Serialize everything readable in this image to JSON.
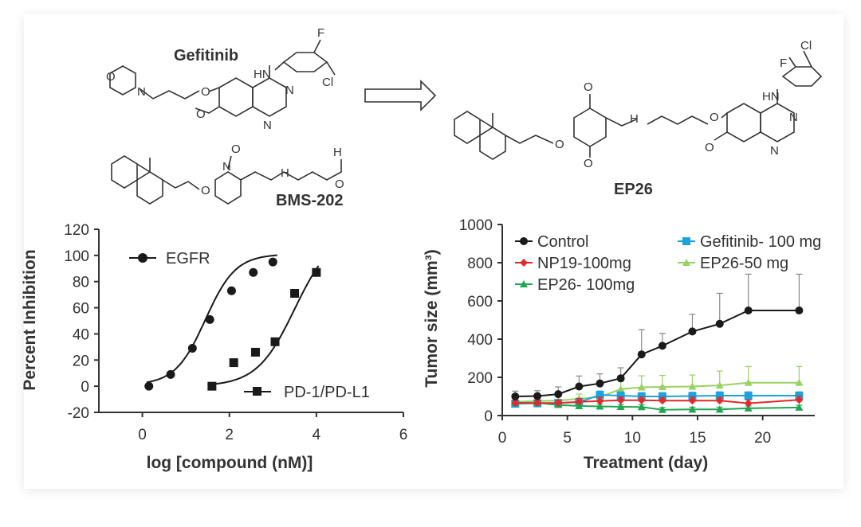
{
  "scheme": {
    "compound_a": "Gefitinib",
    "compound_b": "BMS-202",
    "product": "EP26",
    "atoms": {
      "n": "N",
      "o": "O",
      "nh": "HN",
      "h": "H",
      "f": "F",
      "cl": "Cl"
    }
  },
  "chart_data": [
    {
      "type": "scatter",
      "xlabel": "log [compound (nM)]",
      "ylabel": "Percent Inhibition",
      "xlim": [
        -1,
        6
      ],
      "ylim": [
        -20,
        120
      ],
      "xticks": [
        0,
        2,
        4,
        6
      ],
      "yticks": [
        -20,
        0,
        20,
        40,
        60,
        80,
        100,
        120
      ],
      "series": [
        {
          "name": "EGFR",
          "marker": "circle",
          "x": [
            0.15,
            0.65,
            1.15,
            1.55,
            2.05,
            2.55,
            3.0
          ],
          "y": [
            0,
            9,
            29,
            51,
            73,
            87,
            95
          ],
          "fit": {
            "bottom": 1,
            "top": 101,
            "ec50": 1.45,
            "hill": 1.25,
            "xrange": [
              0.1,
              3.1
            ]
          }
        },
        {
          "name": "PD-1/PD-L1",
          "marker": "square",
          "x": [
            1.6,
            2.1,
            2.6,
            3.05,
            3.5,
            4.0
          ],
          "y": [
            0,
            18,
            26,
            34,
            71,
            87
          ],
          "fit": {
            "bottom": 0,
            "top": 118,
            "ec50": 3.5,
            "hill": 1.0,
            "xrange": [
              1.5,
              4.05
            ]
          }
        }
      ]
    },
    {
      "type": "line",
      "xlabel": "Treatment (day)",
      "ylabel": "Tumor size (mm³)",
      "xlim": [
        0,
        24
      ],
      "ylim": [
        0,
        1000
      ],
      "xticks": [
        0,
        5,
        10,
        15,
        20
      ],
      "yticks": [
        0,
        200,
        400,
        600,
        800,
        1000
      ],
      "series": [
        {
          "name": "Control",
          "color": "#1a1a1a",
          "marker": "circle",
          "x": [
            1,
            2.7,
            4.3,
            5.9,
            7.5,
            9.1,
            10.7,
            12.3,
            14.6,
            16.7,
            18.9,
            22.8
          ],
          "y": [
            100,
            102,
            112,
            152,
            168,
            195,
            320,
            365,
            440,
            480,
            550,
            550
          ],
          "err": [
            28,
            28,
            38,
            55,
            50,
            55,
            130,
            65,
            90,
            160,
            190,
            190
          ]
        },
        {
          "name": "NP19-100mg",
          "color": "#e32a2a",
          "marker": "diamond",
          "x": [
            1,
            2.7,
            4.3,
            5.9,
            7.5,
            9.1,
            10.7,
            12.3,
            14.6,
            16.7,
            18.9,
            22.8
          ],
          "y": [
            65,
            66,
            66,
            72,
            76,
            80,
            80,
            78,
            78,
            78,
            64,
            82
          ],
          "err": [
            15,
            15,
            15,
            18,
            20,
            18,
            18,
            18,
            20,
            18,
            18,
            20
          ]
        },
        {
          "name": "EP26- 100mg",
          "color": "#1fa650",
          "marker": "triangle",
          "x": [
            1,
            2.7,
            4.3,
            5.9,
            7.5,
            9.1,
            10.7,
            12.3,
            14.6,
            16.7,
            18.9,
            22.8
          ],
          "y": [
            68,
            66,
            56,
            50,
            48,
            46,
            45,
            30,
            32,
            32,
            38,
            42
          ],
          "err": [
            12,
            12,
            12,
            12,
            12,
            12,
            12,
            12,
            12,
            12,
            12,
            12
          ]
        },
        {
          "name": "Gefitinib- 100 mg",
          "color": "#1aa3e0",
          "marker": "square",
          "x": [
            1,
            2.7,
            4.3,
            5.9,
            7.5,
            9.1,
            10.7,
            12.3,
            14.6,
            16.7,
            18.9,
            22.8
          ],
          "y": [
            62,
            64,
            66,
            70,
            108,
            104,
            100,
            100,
            102,
            104,
            104,
            104
          ],
          "err": [
            15,
            15,
            15,
            15,
            20,
            20,
            20,
            20,
            20,
            20,
            20,
            20
          ]
        },
        {
          "name": "EP26-50 mg",
          "color": "#9ad163",
          "marker": "triangle",
          "x": [
            1,
            2.7,
            4.3,
            5.9,
            7.5,
            9.1,
            10.7,
            12.3,
            14.6,
            16.7,
            18.9,
            22.8
          ],
          "y": [
            72,
            76,
            78,
            88,
            98,
            138,
            148,
            150,
            152,
            158,
            172,
            172
          ],
          "err": [
            20,
            20,
            25,
            25,
            30,
            40,
            60,
            60,
            60,
            75,
            85,
            85
          ]
        }
      ]
    }
  ]
}
